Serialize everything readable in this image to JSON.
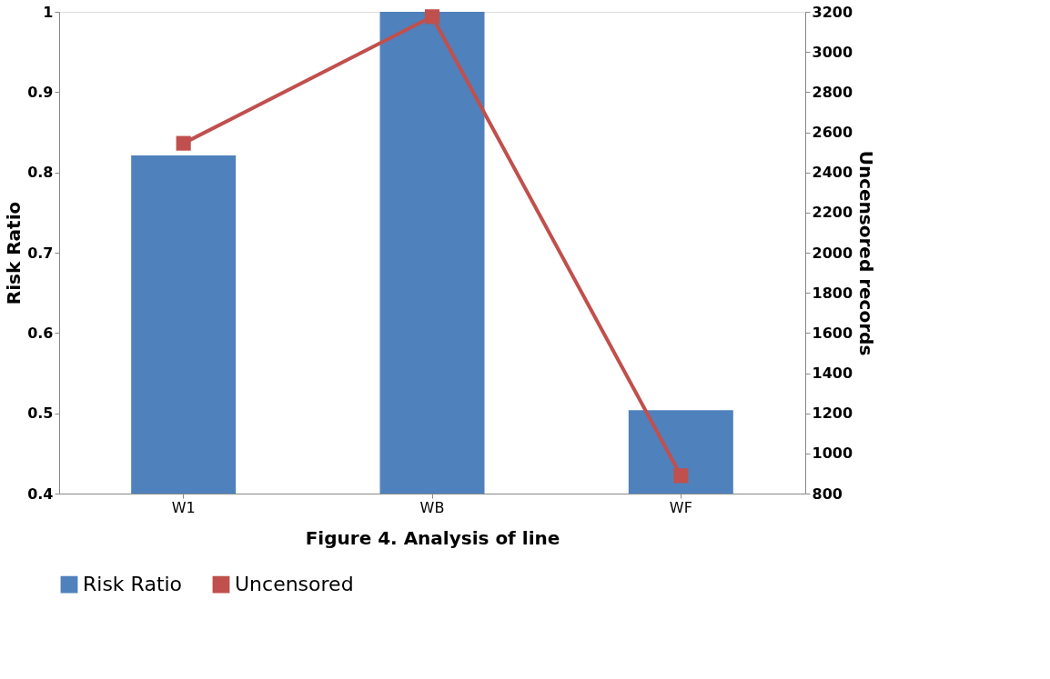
{
  "chart_data": {
    "type": "bar",
    "xlabel": "Figure 4. Analysis of line",
    "ylabel": "Risk Ratio",
    "y2label": "Uncensored records",
    "categories": [
      "W1",
      "WB",
      "WF"
    ],
    "series": [
      {
        "name": "Risk Ratio",
        "color": "#4f81bd",
        "values": [
          0.821,
          1.0,
          0.504
        ]
      },
      {
        "name": "Uncensored",
        "color": "#c0504d",
        "type": "line",
        "axis": "y2",
        "marker": "square",
        "values": [
          2545,
          3176,
          889
        ]
      }
    ],
    "ylim": [
      0.4,
      1
    ],
    "yticks": [
      0.4,
      0.5,
      0.6,
      0.7,
      0.8,
      0.9,
      1
    ],
    "y2lim": [
      800,
      3200
    ],
    "y2ticks": [
      800,
      1000,
      1200,
      1400,
      1600,
      1800,
      2000,
      2200,
      2400,
      2600,
      2800,
      3000,
      3200
    ],
    "grid": false,
    "legend": "bottom"
  }
}
